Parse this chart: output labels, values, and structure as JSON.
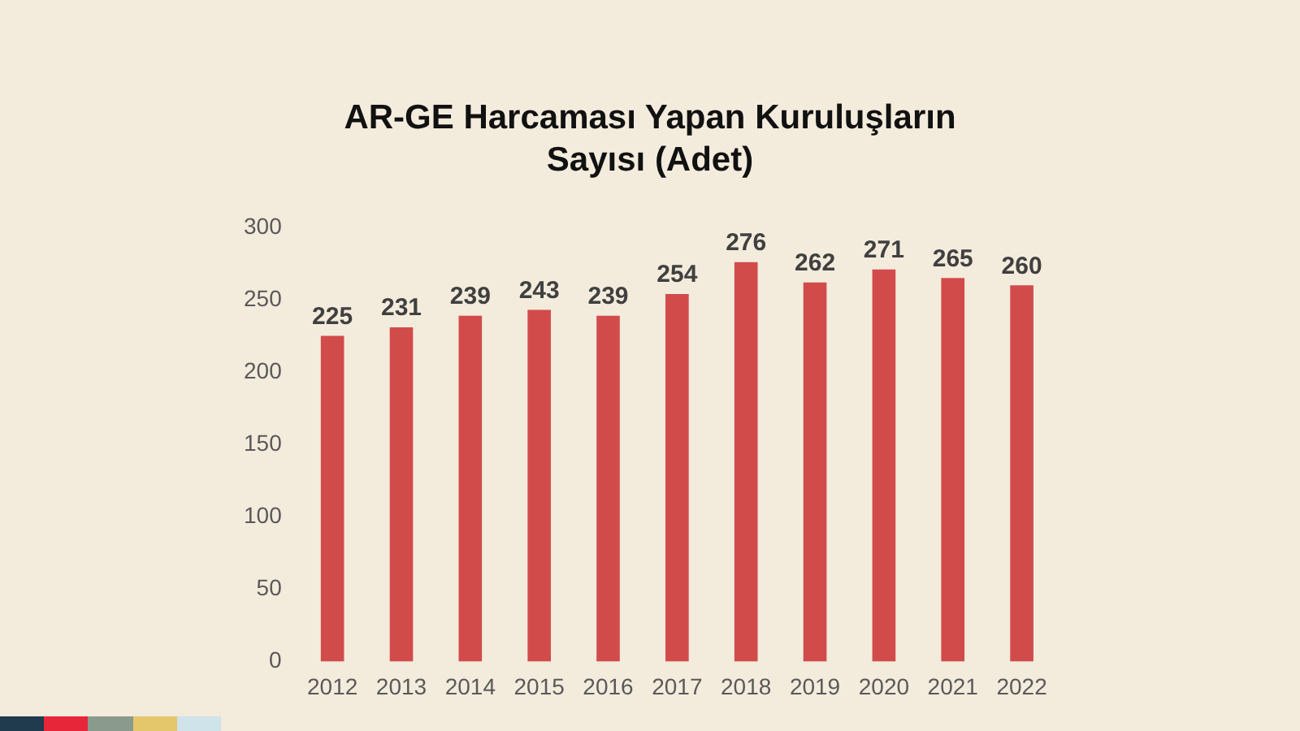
{
  "chart_data": {
    "type": "bar",
    "title": "AR-GE Harcaması Yapan Kuruluşların Sayısı (Adet)",
    "categories": [
      "2012",
      "2013",
      "2014",
      "2015",
      "2016",
      "2017",
      "2018",
      "2019",
      "2020",
      "2021",
      "2022"
    ],
    "values": [
      225,
      231,
      239,
      243,
      239,
      254,
      276,
      262,
      271,
      265,
      260
    ],
    "color": "#d24b4b",
    "ylim": [
      0,
      300
    ],
    "yticks": [
      0,
      50,
      100,
      150,
      200,
      250,
      300
    ],
    "grid": false,
    "legend": false,
    "data_labels": true
  }
}
